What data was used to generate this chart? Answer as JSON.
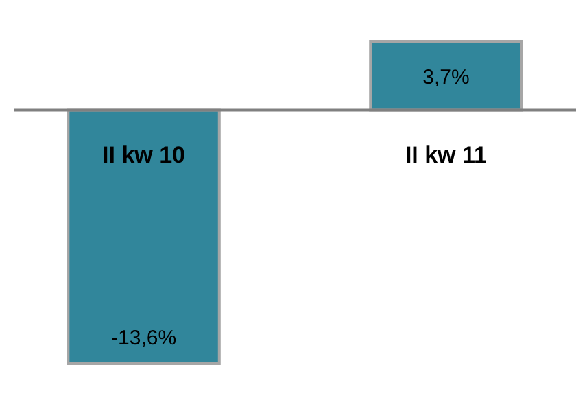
{
  "chart_data": {
    "type": "bar",
    "categories": [
      "II kw 10",
      "II kw 11"
    ],
    "values": [
      -13.6,
      3.7
    ],
    "color": "#31869b",
    "value_labels": [
      "-13,6%",
      "3,7%"
    ]
  }
}
